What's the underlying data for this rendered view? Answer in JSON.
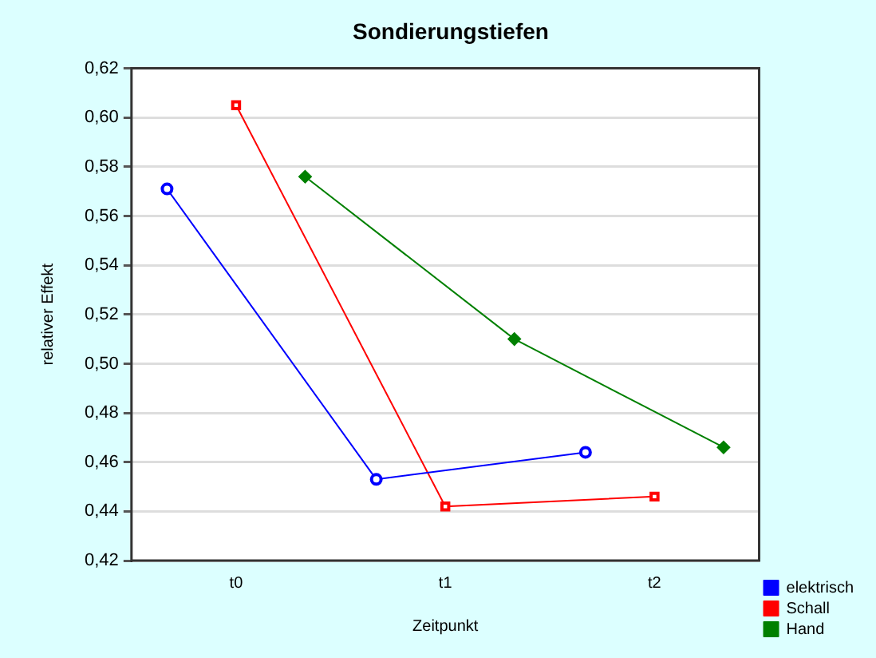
{
  "chart_data": {
    "type": "line",
    "title": "Sondierungstiefen",
    "xlabel": "Zeitpunkt",
    "ylabel": "relativer Effekt",
    "categories": [
      "t0",
      "t1",
      "t2"
    ],
    "series": [
      {
        "name": "elektrisch",
        "color": "#0000ff",
        "marker": "circle",
        "values": [
          0.571,
          0.453,
          0.464
        ]
      },
      {
        "name": "Schall",
        "color": "#ff0000",
        "marker": "square",
        "values": [
          0.605,
          0.442,
          0.446
        ]
      },
      {
        "name": "Hand",
        "color": "#008000",
        "marker": "diamond",
        "values": [
          0.576,
          0.51,
          0.466
        ]
      }
    ],
    "ylim": [
      0.42,
      0.62
    ],
    "yticks": [
      {
        "value": 0.42,
        "label": "0,42"
      },
      {
        "value": 0.44,
        "label": "0,44"
      },
      {
        "value": 0.46,
        "label": "0,46"
      },
      {
        "value": 0.48,
        "label": "0,48"
      },
      {
        "value": 0.5,
        "label": "0,50"
      },
      {
        "value": 0.52,
        "label": "0,52"
      },
      {
        "value": 0.54,
        "label": "0,54"
      },
      {
        "value": 0.56,
        "label": "0,56"
      },
      {
        "value": 0.58,
        "label": "0,58"
      },
      {
        "value": 0.6,
        "label": "0,60"
      },
      {
        "value": 0.62,
        "label": "0,62"
      }
    ],
    "grid": "y",
    "legend": "bottom right"
  }
}
